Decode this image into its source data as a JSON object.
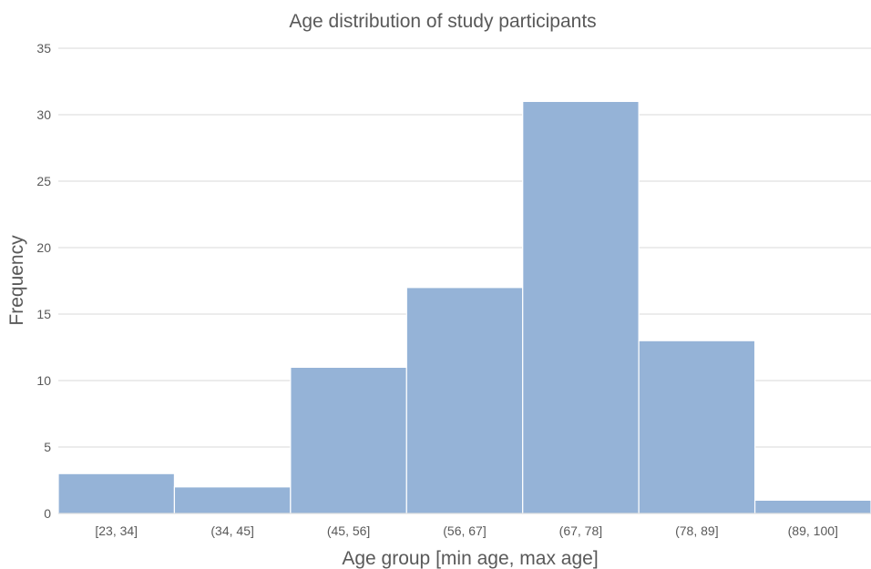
{
  "chart_data": {
    "type": "bar",
    "title": "Age distribution of study participants",
    "xlabel": "Age group [min age, max age]",
    "ylabel": "Frequency",
    "categories": [
      "[23, 34]",
      "(34, 45]",
      "(45, 56]",
      "(56, 67]",
      "(67, 78]",
      "(78, 89]",
      "(89, 100]"
    ],
    "values": [
      3,
      2,
      11,
      17,
      31,
      13,
      1
    ],
    "ylim": [
      0,
      35
    ],
    "yticks": [
      0,
      5,
      10,
      15,
      20,
      25,
      30,
      35
    ],
    "grid": true,
    "bar_color": "#95b3d7"
  }
}
